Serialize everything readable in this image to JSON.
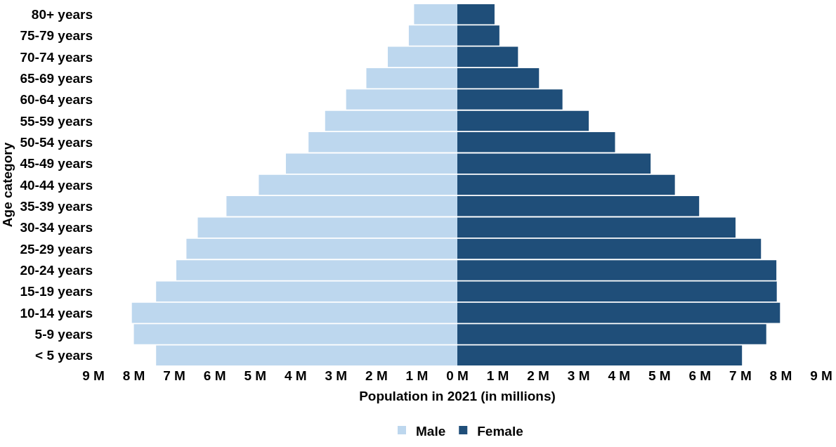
{
  "chart_data": {
    "type": "bar",
    "orientation": "horizontal",
    "xlabel": "Population in 2021 (in millions)",
    "ylabel": "Age category",
    "categories": [
      "80+ years",
      "75-79 years",
      "70-74 years",
      "65-69 years",
      "60-64 years",
      "55-59 years",
      "50-54 years",
      "45-49 years",
      "40-44 years",
      "35-39 years",
      "30-34 years",
      "25-29 years",
      "20-24 years",
      "15-19 years",
      "10-14 years",
      "5-9 years",
      "< 5 years"
    ],
    "series": [
      {
        "name": "Male",
        "color": "#bdd7ee",
        "values": [
          -1.07,
          -1.2,
          -1.72,
          -2.25,
          -2.75,
          -3.27,
          -3.68,
          -4.24,
          -4.91,
          -5.71,
          -6.42,
          -6.7,
          -6.95,
          -7.45,
          -8.05,
          -8.0,
          -7.45
        ]
      },
      {
        "name": "Female",
        "color": "#1f4e79",
        "values": [
          0.92,
          1.04,
          1.5,
          2.02,
          2.6,
          3.25,
          3.9,
          4.78,
          5.38,
          5.98,
          6.88,
          7.51,
          7.89,
          7.9,
          7.98,
          7.64,
          7.04
        ]
      }
    ],
    "xlim": [
      -9,
      9
    ],
    "xticks": [
      {
        "value": -9,
        "label": "9 M"
      },
      {
        "value": -8,
        "label": "8 M"
      },
      {
        "value": -7,
        "label": "7 M"
      },
      {
        "value": -6,
        "label": "6 M"
      },
      {
        "value": -5,
        "label": "5 M"
      },
      {
        "value": -4,
        "label": "4 M"
      },
      {
        "value": -3,
        "label": "3 M"
      },
      {
        "value": -2,
        "label": "2 M"
      },
      {
        "value": -1,
        "label": "1 M"
      },
      {
        "value": 0,
        "label": "0 M"
      },
      {
        "value": 1,
        "label": "1 M"
      },
      {
        "value": 2,
        "label": "2 M"
      },
      {
        "value": 3,
        "label": "3 M"
      },
      {
        "value": 4,
        "label": "4 M"
      },
      {
        "value": 5,
        "label": "5 M"
      },
      {
        "value": 6,
        "label": "6 M"
      },
      {
        "value": 7,
        "label": "7 M"
      },
      {
        "value": 8,
        "label": "8 M"
      },
      {
        "value": 9,
        "label": "9 M"
      }
    ],
    "stacked": true,
    "grid": false,
    "legend": "bottom"
  }
}
